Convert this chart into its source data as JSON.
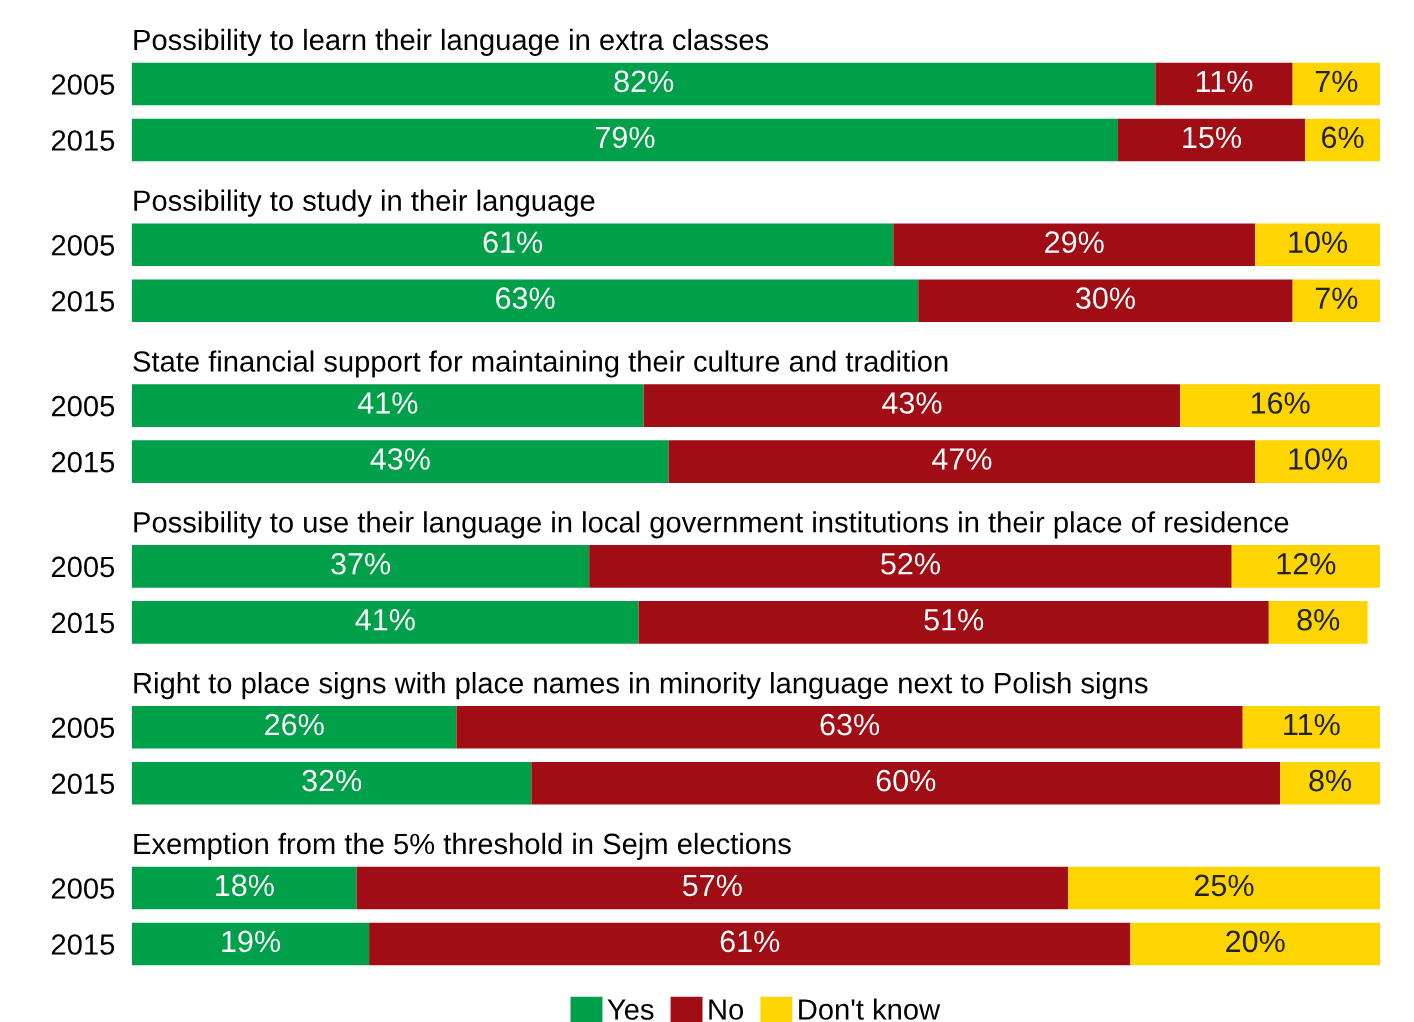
{
  "chart_data": [
    {
      "type": "bar",
      "orientation": "horizontal",
      "stacked": true,
      "title": "Possibility to learn their language in extra classes",
      "categories": [
        "2005",
        "2015"
      ],
      "xlim": [
        0,
        100
      ],
      "tick_labels": "y",
      "legend": false,
      "series": [
        {
          "color": "#00a04b",
          "values": [
            82,
            79
          ],
          "value_labels": [
            "82%",
            "79%"
          ]
        },
        {
          "color": "#a00d14",
          "values": [
            11,
            15
          ],
          "value_labels": [
            "11%",
            "15%"
          ]
        },
        {
          "color": "#ffd500",
          "values": [
            7,
            6
          ],
          "value_labels": [
            "7%",
            "6%"
          ]
        }
      ]
    },
    {
      "type": "bar",
      "orientation": "horizontal",
      "stacked": true,
      "title": "Possibility to study in their language",
      "categories": [
        "2005",
        "2015"
      ],
      "xlim": [
        0,
        100
      ],
      "tick_labels": "y",
      "legend": false,
      "series": [
        {
          "color": "#00a04b",
          "values": [
            61,
            63
          ],
          "value_labels": [
            "61%",
            "63%"
          ]
        },
        {
          "color": "#a00d14",
          "values": [
            29,
            30
          ],
          "value_labels": [
            "29%",
            "30%"
          ]
        },
        {
          "color": "#ffd500",
          "values": [
            10,
            7
          ],
          "value_labels": [
            "10%",
            "7%"
          ]
        }
      ]
    },
    {
      "type": "bar",
      "orientation": "horizontal",
      "stacked": true,
      "title": "State financial support for maintaining their culture and tradition",
      "categories": [
        "2005",
        "2015"
      ],
      "xlim": [
        0,
        100
      ],
      "tick_labels": "y",
      "legend": false,
      "series": [
        {
          "color": "#00a04b",
          "values": [
            41,
            43
          ],
          "value_labels": [
            "41%",
            "43%"
          ]
        },
        {
          "color": "#a00d14",
          "values": [
            43,
            47
          ],
          "value_labels": [
            "43%",
            "47%"
          ]
        },
        {
          "color": "#ffd500",
          "values": [
            16,
            10
          ],
          "value_labels": [
            "16%",
            "10%"
          ]
        }
      ]
    },
    {
      "type": "bar",
      "orientation": "horizontal",
      "stacked": true,
      "title": "Possibility to use their language in local government institutions in their place of residence",
      "categories": [
        "2005",
        "2015"
      ],
      "xlim": [
        0,
        101
      ],
      "tick_labels": "y",
      "series": [
        {
          "color": "#00a04b",
          "values": [
            37,
            41
          ],
          "value_labels": [
            "37%",
            "41%"
          ]
        },
        {
          "color": "#a00d14",
          "values": [
            52,
            51
          ],
          "value_labels": [
            "52%",
            "51%"
          ]
        },
        {
          "color": "#ffd500",
          "values": [
            12,
            8
          ],
          "value_labels": [
            "12%",
            "8%"
          ]
        }
      ]
    },
    {
      "type": "bar",
      "orientation": "horizontal",
      "stacked": true,
      "title": "Right to place signs with place names in minority language next to Polish signs",
      "categories": [
        "2005",
        "2015"
      ],
      "xlim": [
        0,
        100
      ],
      "tick_labels": "y",
      "legend": false,
      "series": [
        {
          "color": "#00a04b",
          "values": [
            26,
            32
          ],
          "value_labels": [
            "26%",
            "32%"
          ]
        },
        {
          "color": "#a00d14",
          "values": [
            63,
            60
          ],
          "value_labels": [
            "63%",
            "60%"
          ]
        },
        {
          "color": "#ffd500",
          "values": [
            11,
            8
          ],
          "value_labels": [
            "11%",
            "8%"
          ]
        }
      ]
    },
    {
      "type": "bar",
      "orientation": "horizontal",
      "stacked": true,
      "title": "Exemption from the 5% threshold in Sejm elections",
      "categories": [
        "2005",
        "2015"
      ],
      "xlim": [
        0,
        100
      ],
      "tick_labels": "y",
      "legend": "bottom",
      "series": [
        {
          "name": "Yes",
          "color": "#00a04b",
          "values": [
            18,
            19
          ],
          "value_labels": [
            "18%",
            "19%"
          ]
        },
        {
          "name": "No",
          "color": "#a00d14",
          "values": [
            57,
            61
          ],
          "value_labels": [
            "57%",
            "61%"
          ]
        },
        {
          "name": "Don't know",
          "color": "#ffd500",
          "values": [
            25,
            20
          ],
          "value_labels": [
            "25%",
            "20%"
          ]
        }
      ]
    }
  ]
}
